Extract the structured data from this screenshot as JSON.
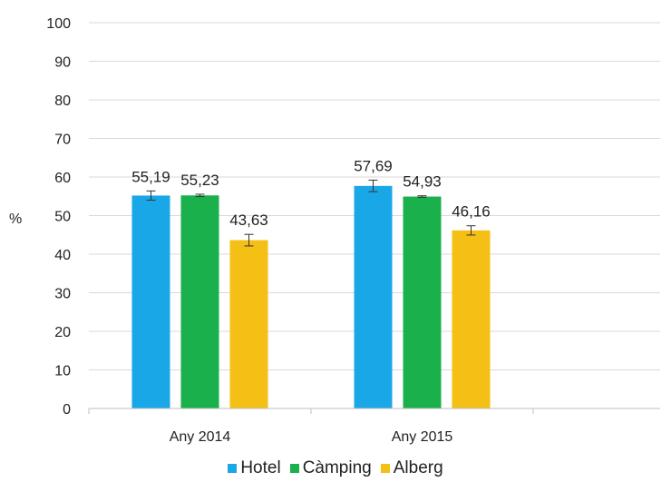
{
  "chart_data": {
    "type": "bar",
    "categories": [
      "Any 2014",
      "Any 2015"
    ],
    "series": [
      {
        "name": "Hotel",
        "color": "#1aa7e8",
        "values": [
          55.19,
          57.69
        ],
        "errors": [
          1.2,
          1.5
        ],
        "labels": [
          "55,19",
          "57,69"
        ]
      },
      {
        "name": "Càmping",
        "color": "#1ab04b",
        "values": [
          55.23,
          54.93
        ],
        "errors": [
          0.3,
          0.2
        ],
        "labels": [
          "55,23",
          "54,93"
        ]
      },
      {
        "name": "Alberg",
        "color": "#f5c015",
        "values": [
          43.63,
          46.16
        ],
        "errors": [
          1.5,
          1.2
        ],
        "labels": [
          "43,63",
          "46,16"
        ]
      }
    ],
    "ylabel": "%",
    "ylim": [
      0,
      100
    ],
    "yticks": [
      0,
      10,
      20,
      30,
      40,
      50,
      60,
      70,
      80,
      90,
      100
    ],
    "grid": true,
    "legend_position": "bottom"
  }
}
